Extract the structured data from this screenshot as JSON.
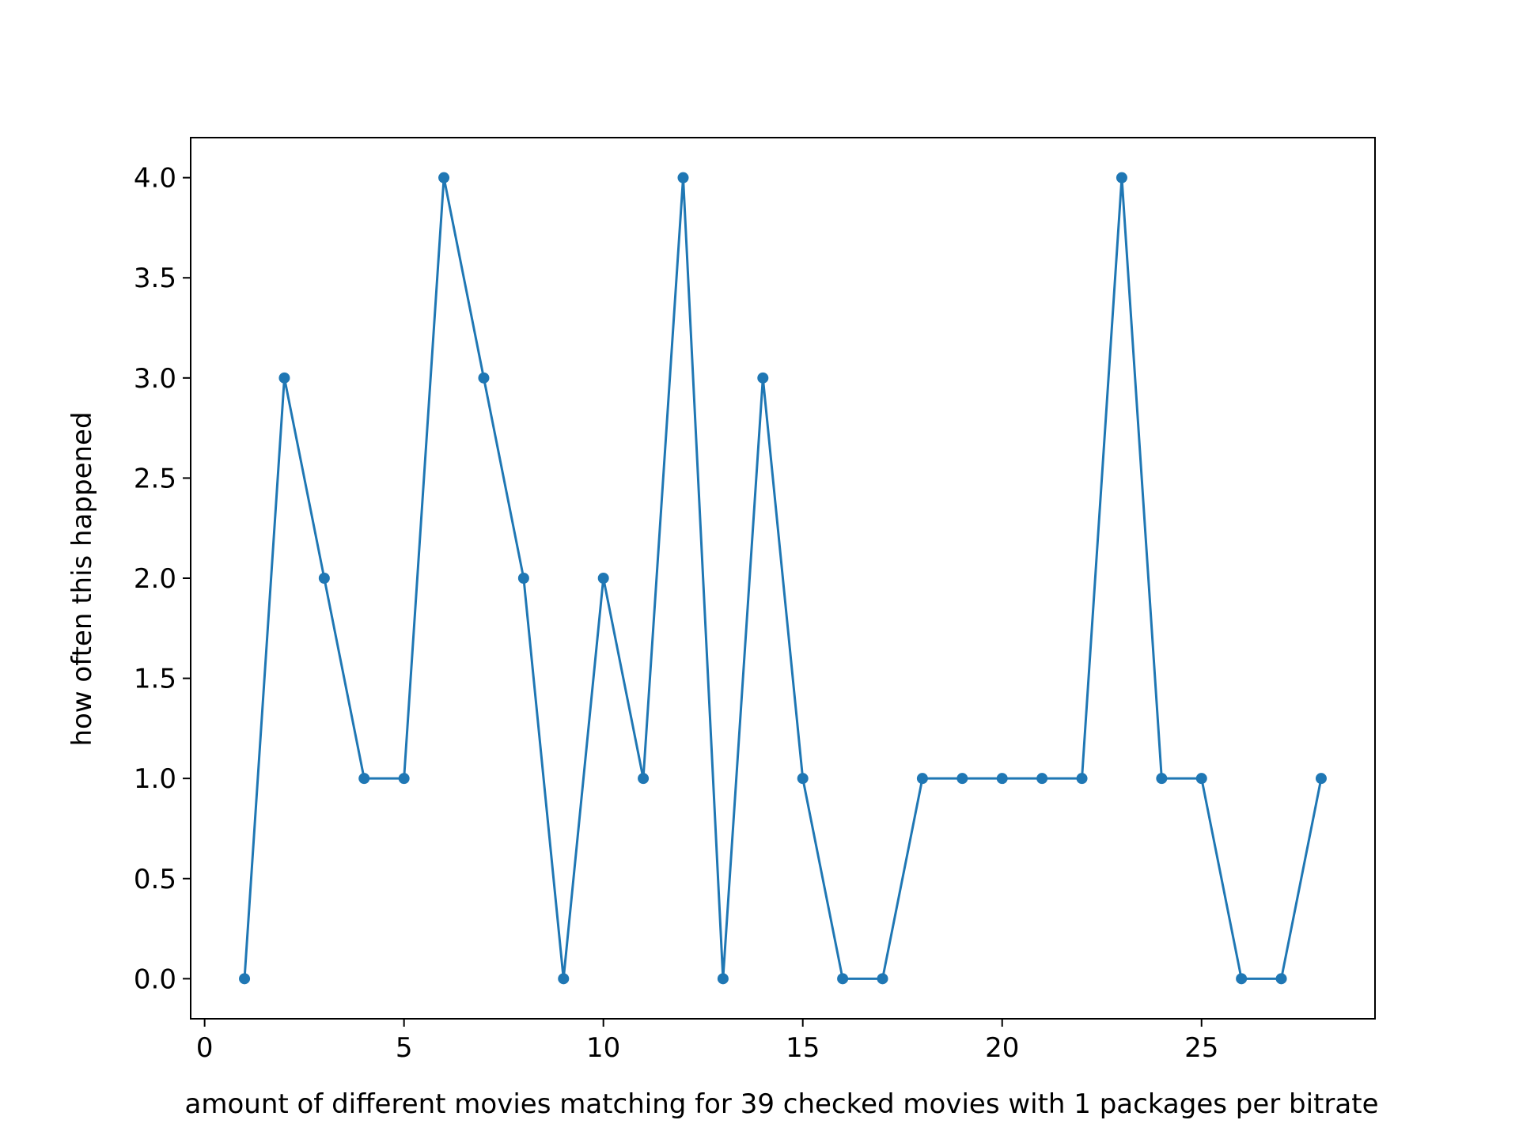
{
  "chart_data": {
    "type": "line",
    "title": "",
    "xlabel": "amount of different movies matching for 39 checked movies with 1 packages per bitrate",
    "ylabel": "how often this happened",
    "xlim": [
      -0.35,
      29.35
    ],
    "ylim": [
      -0.2,
      4.2
    ],
    "xticks": [
      0,
      5,
      10,
      15,
      20,
      25
    ],
    "yticks": [
      0.0,
      0.5,
      1.0,
      1.5,
      2.0,
      2.5,
      3.0,
      3.5,
      4.0
    ],
    "xtick_labels": [
      "0",
      "5",
      "10",
      "15",
      "20",
      "25"
    ],
    "ytick_labels": [
      "0.0",
      "0.5",
      "1.0",
      "1.5",
      "2.0",
      "2.5",
      "3.0",
      "3.5",
      "4.0"
    ],
    "grid": false,
    "legend": "none",
    "series": [
      {
        "color": "#1f77b4",
        "marker": "circle",
        "x": [
          1,
          2,
          3,
          4,
          5,
          6,
          7,
          8,
          9,
          10,
          11,
          12,
          13,
          14,
          15,
          16,
          17,
          18,
          19,
          20,
          21,
          22,
          23,
          24,
          25,
          26,
          27,
          28
        ],
        "y": [
          0,
          3,
          2,
          1,
          1,
          4,
          3,
          2,
          0,
          2,
          1,
          4,
          0,
          3,
          1,
          0,
          0,
          1,
          1,
          1,
          1,
          1,
          4,
          1,
          1,
          0,
          0,
          1
        ]
      }
    ]
  }
}
